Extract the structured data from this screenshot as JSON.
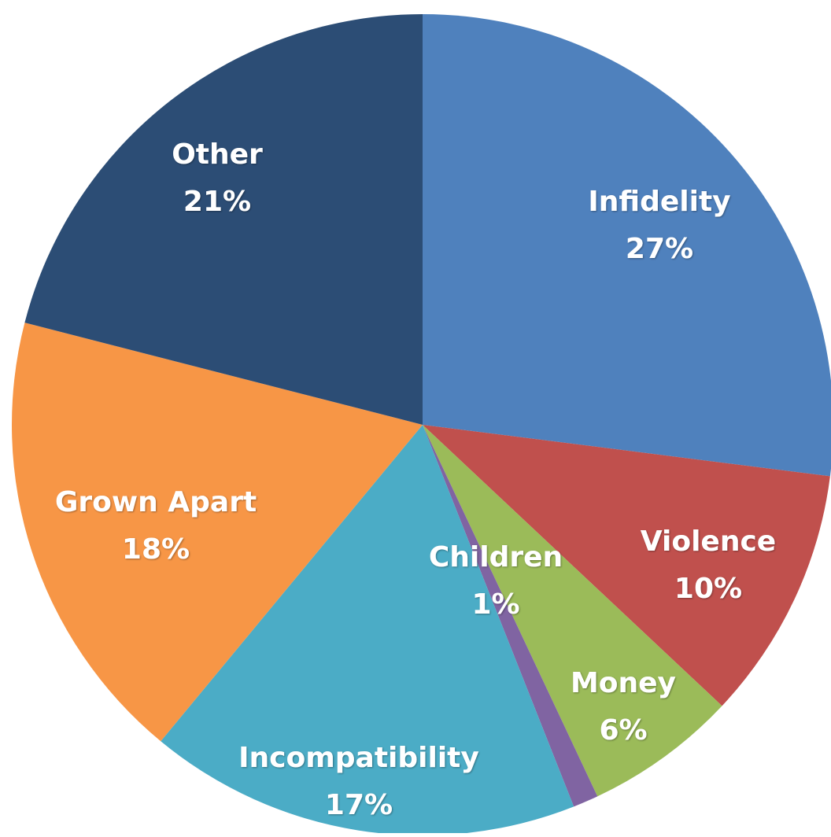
{
  "chart_data": {
    "type": "pie",
    "title": "",
    "labels": [
      "Infidelity",
      "Violence",
      "Money",
      "Children",
      "Incompatibility",
      "Grown Apart",
      "Other"
    ],
    "values": [
      27,
      10,
      6,
      1,
      17,
      18,
      21
    ],
    "value_labels": [
      "27%",
      "10%",
      "6%",
      "1%",
      "17%",
      "18%",
      "21%"
    ],
    "colors": [
      "#4f81bd",
      "#c0504d",
      "#9bbb59",
      "#8064a2",
      "#4bacc6",
      "#f79646",
      "#2c4d75"
    ],
    "start_angle_deg": 0,
    "direction": "clockwise",
    "legend": "none",
    "data_labels": "inside"
  }
}
